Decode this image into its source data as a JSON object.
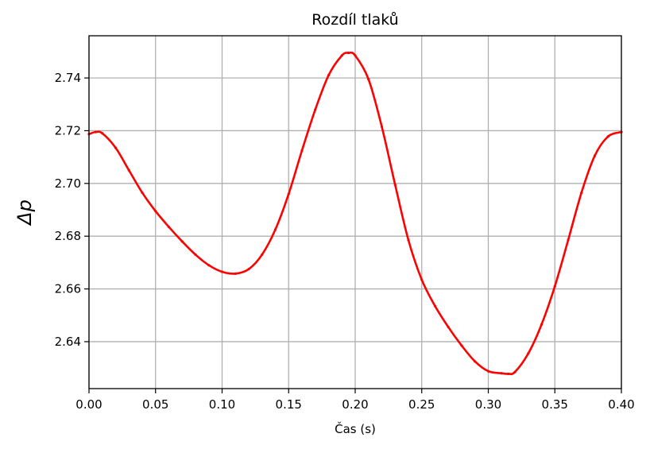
{
  "chart_data": {
    "type": "line",
    "title": "Rozdíl tlaků",
    "xlabel": "Čas (s)",
    "ylabel": "Δp",
    "xlim": [
      0.0,
      0.4
    ],
    "ylim": [
      2.6222,
      2.756
    ],
    "grid": true,
    "x_ticks": [
      0.0,
      0.05,
      0.1,
      0.15,
      0.2,
      0.25,
      0.3,
      0.35,
      0.4
    ],
    "x_tick_labels": [
      "0.00",
      "0.05",
      "0.10",
      "0.15",
      "0.20",
      "0.25",
      "0.30",
      "0.35",
      "0.40"
    ],
    "y_ticks": [
      2.64,
      2.66,
      2.68,
      2.7,
      2.72,
      2.74
    ],
    "y_tick_labels": [
      "2.64",
      "2.66",
      "2.68",
      "2.70",
      "2.72",
      "2.74"
    ],
    "series": [
      {
        "color": "#ff0000",
        "x": [
          0.0,
          0.005,
          0.01,
          0.02,
          0.03,
          0.04,
          0.05,
          0.06,
          0.07,
          0.08,
          0.09,
          0.1,
          0.11,
          0.12,
          0.13,
          0.14,
          0.15,
          0.16,
          0.17,
          0.18,
          0.19,
          0.195,
          0.2,
          0.21,
          0.22,
          0.23,
          0.24,
          0.25,
          0.26,
          0.27,
          0.28,
          0.29,
          0.3,
          0.31,
          0.315,
          0.32,
          0.33,
          0.34,
          0.35,
          0.36,
          0.37,
          0.38,
          0.39,
          0.4
        ],
        "y": [
          2.7187,
          2.7195,
          2.719,
          2.7135,
          2.705,
          2.6965,
          2.6895,
          2.6835,
          2.678,
          2.673,
          2.669,
          2.6665,
          2.6658,
          2.6675,
          2.673,
          2.6825,
          2.696,
          2.7125,
          2.728,
          2.741,
          2.7485,
          2.7495,
          2.7485,
          2.7395,
          2.7215,
          2.6995,
          2.6785,
          2.6635,
          2.6535,
          2.6455,
          2.6385,
          2.6325,
          2.6288,
          2.628,
          2.6278,
          2.6285,
          2.6355,
          2.6465,
          2.661,
          2.6785,
          2.6965,
          2.7105,
          2.7178,
          2.7195
        ]
      }
    ]
  }
}
